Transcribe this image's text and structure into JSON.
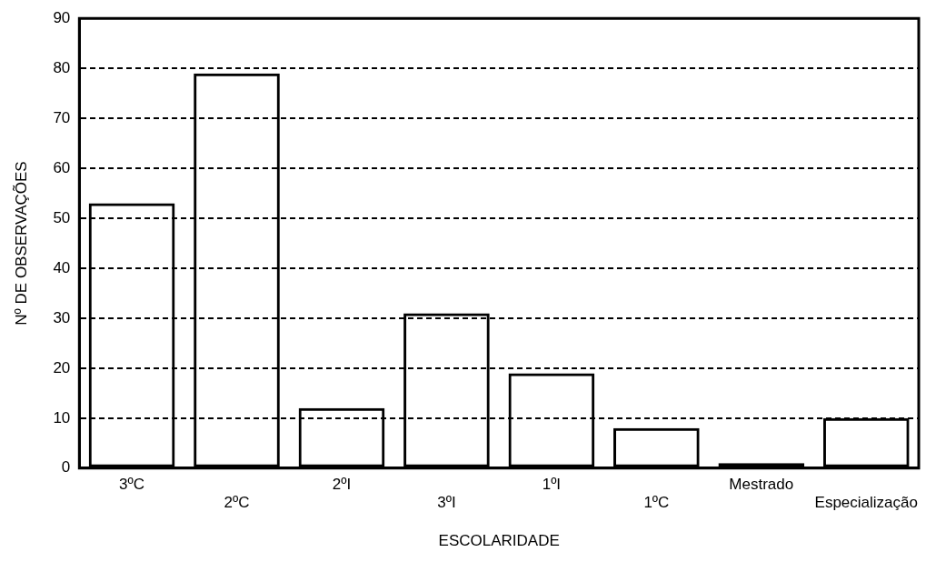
{
  "chart_data": {
    "type": "bar",
    "xlabel": "ESCOLARIDADE",
    "ylabel": "Nº DE OBSERVAÇÕES",
    "categories": [
      "3ºC",
      "2ºC",
      "2ºI",
      "3ºI",
      "1ºI",
      "1ºC",
      "Mestrado",
      "Especialização"
    ],
    "values": [
      53,
      79,
      12,
      31,
      19,
      8,
      1,
      10
    ],
    "color": "#000000",
    "ylim": [
      0,
      90
    ],
    "yticks": [
      0,
      10,
      20,
      30,
      40,
      50,
      60,
      70,
      80,
      90
    ],
    "grid": "y",
    "legend": false
  }
}
